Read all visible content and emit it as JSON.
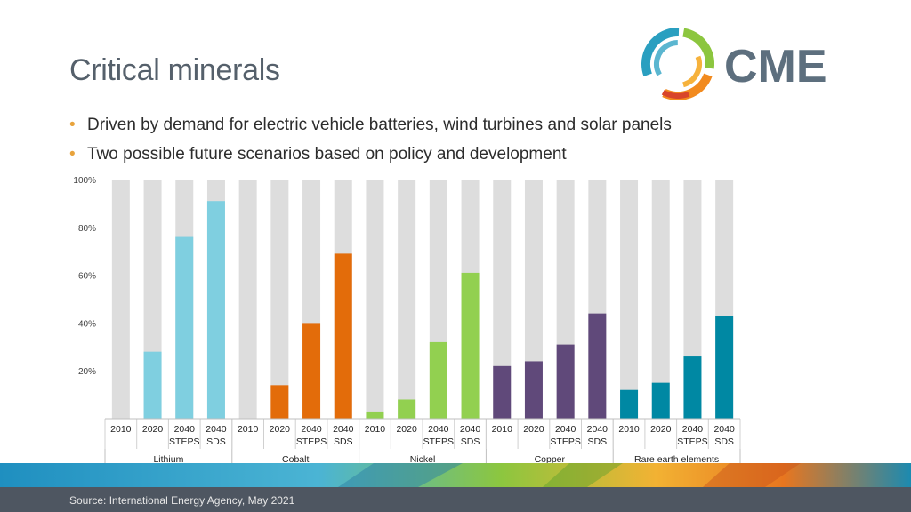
{
  "slide": {
    "title": "Critical minerals",
    "bullets": [
      "Driven by demand for electric vehicle batteries, wind turbines and solar panels",
      "Two possible future scenarios based on policy and development"
    ],
    "logo_text": "CME",
    "source": "Source:  International Energy Agency, May 2021",
    "colors": {
      "bullet": "#e8a33c",
      "title": "#55606b",
      "footer": "#4e5661",
      "logo_text": "#5d6f7e"
    }
  },
  "chart_data": {
    "type": "bar",
    "title": "",
    "ylim": [
      0,
      100
    ],
    "yticks": [
      20,
      40,
      60,
      80,
      100
    ],
    "ytick_labels": [
      "20%",
      "40%",
      "60%",
      "80%",
      "100%"
    ],
    "grid": false,
    "background_bar_color": "#dddddd",
    "groups": [
      {
        "name": "Lithium",
        "color": "#7fcfe0",
        "bars": [
          {
            "label": [
              "2010"
            ],
            "value": 0
          },
          {
            "label": [
              "2020"
            ],
            "value": 28
          },
          {
            "label": [
              "2040",
              "STEPS"
            ],
            "value": 76
          },
          {
            "label": [
              "2040",
              "SDS"
            ],
            "value": 91
          }
        ]
      },
      {
        "name": "Cobalt",
        "color": "#e36c0a",
        "bars": [
          {
            "label": [
              "2010"
            ],
            "value": 0
          },
          {
            "label": [
              "2020"
            ],
            "value": 14
          },
          {
            "label": [
              "2040",
              "STEPS"
            ],
            "value": 40
          },
          {
            "label": [
              "2040",
              "SDS"
            ],
            "value": 69
          }
        ]
      },
      {
        "name": "Nickel",
        "color": "#92d050",
        "bars": [
          {
            "label": [
              "2010"
            ],
            "value": 3
          },
          {
            "label": [
              "2020"
            ],
            "value": 8
          },
          {
            "label": [
              "2040",
              "STEPS"
            ],
            "value": 32
          },
          {
            "label": [
              "2040",
              "SDS"
            ],
            "value": 61
          }
        ]
      },
      {
        "name": "Copper",
        "color": "#60497a",
        "bars": [
          {
            "label": [
              "2010"
            ],
            "value": 22
          },
          {
            "label": [
              "2020"
            ],
            "value": 24
          },
          {
            "label": [
              "2040",
              "STEPS"
            ],
            "value": 31
          },
          {
            "label": [
              "2040",
              "SDS"
            ],
            "value": 44
          }
        ]
      },
      {
        "name": "Rare earth elements",
        "color": "#0088a3",
        "bars": [
          {
            "label": [
              "2010"
            ],
            "value": 12
          },
          {
            "label": [
              "2020"
            ],
            "value": 15
          },
          {
            "label": [
              "2040",
              "STEPS"
            ],
            "value": 26
          },
          {
            "label": [
              "2040",
              "SDS"
            ],
            "value": 43
          }
        ]
      }
    ]
  }
}
